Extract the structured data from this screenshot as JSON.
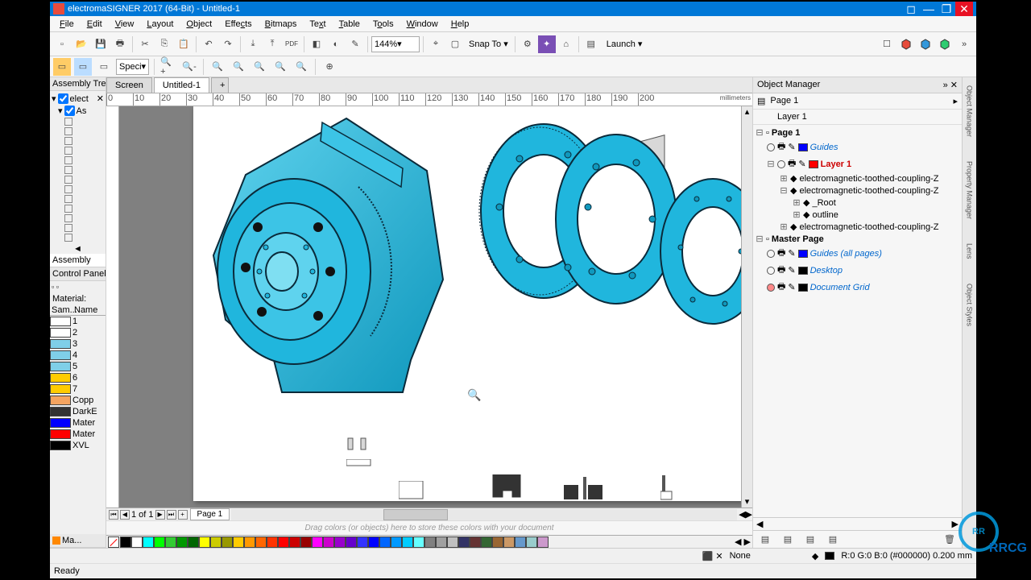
{
  "window": {
    "title": "electromaSIGNER 2017 (64-Bit) - Untitled-1"
  },
  "menus": [
    "File",
    "Edit",
    "View",
    "Layout",
    "Object",
    "Effects",
    "Bitmaps",
    "Text",
    "Table",
    "Tools",
    "Window",
    "Help"
  ],
  "toolbar": {
    "zoom": "144%",
    "snap": "Snap To",
    "launch": "Launch"
  },
  "spec_dropdown": "Speci",
  "doctabs": {
    "tab1": "Screen",
    "tab2": "Untitled-1",
    "newtab": "+"
  },
  "ruler": {
    "unit": "millimeters",
    "ticks": [
      "0",
      "10",
      "20",
      "30",
      "40",
      "50",
      "60",
      "70",
      "80",
      "90",
      "100",
      "110",
      "120",
      "130",
      "140",
      "150",
      "160",
      "170",
      "180",
      "190",
      "200"
    ]
  },
  "left": {
    "assembly_hdr": "Assembly Tre",
    "root": "elect",
    "node": "As",
    "assembly_btn": "Assembly",
    "control_hdr": "Control Panel",
    "material_lbl": "Material:",
    "col_sample": "Sam...",
    "col_name": "Name",
    "materials": [
      {
        "c": "#ffffff",
        "n": "1"
      },
      {
        "c": "#ffffff",
        "n": "2"
      },
      {
        "c": "#7fcfe8",
        "n": "3"
      },
      {
        "c": "#7fcfe8",
        "n": "4"
      },
      {
        "c": "#7fcfe8",
        "n": "5"
      },
      {
        "c": "#ffcc00",
        "n": "6"
      },
      {
        "c": "#ffcc00",
        "n": "7"
      },
      {
        "c": "#f4a460",
        "n": "Copp"
      },
      {
        "c": "#333333",
        "n": "DarkE"
      },
      {
        "c": "#0000ff",
        "n": "Mater"
      },
      {
        "c": "#ff0000",
        "n": "Mater"
      },
      {
        "c": "#000000",
        "n": "XVL"
      }
    ],
    "tab": "Ma..."
  },
  "pagebar": {
    "pos": "1  of  1",
    "page": "Page 1"
  },
  "colorhint": "Drag colors (or objects) here to store these colors with your document",
  "palette": [
    "#000000",
    "#ffffff",
    "#00ffff",
    "#00ff00",
    "#33cc33",
    "#009900",
    "#006600",
    "#ffff00",
    "#cccc00",
    "#999900",
    "#ffcc00",
    "#ff9900",
    "#ff6600",
    "#ff3300",
    "#ff0000",
    "#cc0000",
    "#990000",
    "#ff00ff",
    "#cc00cc",
    "#9900cc",
    "#6600cc",
    "#3333ff",
    "#0000ff",
    "#0066ff",
    "#0099ff",
    "#00ccff",
    "#66ffff",
    "#808080",
    "#a0a0a0",
    "#c0c0c0",
    "#333366",
    "#663333",
    "#336633",
    "#996633",
    "#cc9966",
    "#6699cc",
    "#99cccc",
    "#cc99cc"
  ],
  "right": {
    "hdr": "Object Manager",
    "page_lbl": "Page 1",
    "layer_lbl": "Layer 1",
    "tree": {
      "page1": "Page 1",
      "guides": "Guides",
      "layer1": "Layer 1",
      "obj1": "electromagnetic-toothed-coupling-Z",
      "obj2": "electromagnetic-toothed-coupling-Z",
      "root": "_Root",
      "outline": "outline",
      "obj3": "electromagnetic-toothed-coupling-Z",
      "master": "Master Page",
      "guides_all": "Guides (all pages)",
      "desktop": "Desktop",
      "docgrid": "Document Grid"
    },
    "sidetabs": [
      "Object Manager",
      "Property Manager",
      "Lens",
      "Object Styles"
    ]
  },
  "status": {
    "ready": "Ready",
    "none": "None",
    "rgb": "R:0 G:0 B:0 (#000000)  0.200 mm"
  },
  "drawing": {
    "main_fill": "#20b6dd",
    "main_stroke": "#0a2a3a",
    "shaft_fill": "#d8d8d8",
    "shaft_stroke": "#555555"
  }
}
